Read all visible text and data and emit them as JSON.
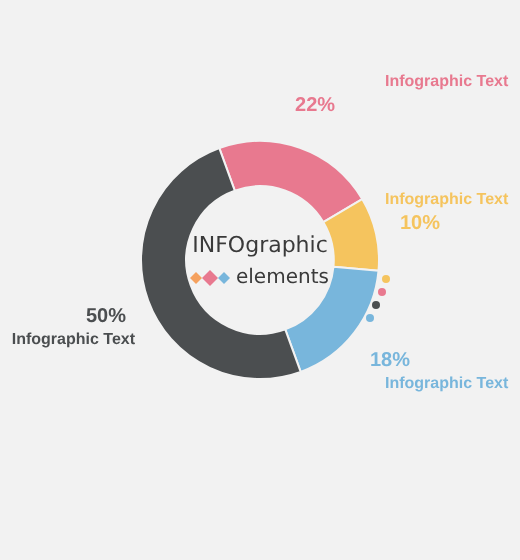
{
  "chart_data": {
    "type": "donut",
    "categories": [
      "Infographic Text",
      "Infographic Text",
      "Infographic Text",
      "Infographic Text"
    ],
    "values": [
      22,
      10,
      18,
      50
    ],
    "colors": [
      "#e8798f",
      "#f5c45e",
      "#78b6dc",
      "#4b4e50"
    ],
    "value_labels": [
      "22%",
      "10%",
      "18%",
      "50%"
    ],
    "annotations": [
      "INFOgraphic elements"
    ],
    "legend": false
  }
}
